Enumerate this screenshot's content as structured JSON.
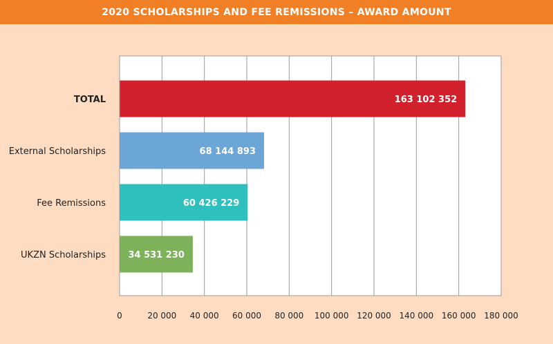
{
  "page": {
    "title": "2020 SCHOLARSHIPS AND FEE REMISSIONS – AWARD AMOUNT"
  },
  "colors": {
    "header_bg": "#F07F25",
    "page_bg": "#FDDCC1",
    "plot_bg": "#FFFFFF",
    "grid": "#9A9A9A"
  },
  "chart_data": {
    "type": "bar",
    "orientation": "horizontal",
    "title": "2020 SCHOLARSHIPS AND FEE REMISSIONS – AWARD AMOUNT",
    "categories": [
      "TOTAL",
      "External Scholarships",
      "Fee Remissions",
      "UKZN Scholarships"
    ],
    "values": [
      163102352,
      68144893,
      60426229,
      34531230
    ],
    "value_labels": [
      "163 102 352",
      "68 144 893",
      "60 426 229",
      "34 531 230"
    ],
    "bar_colors": [
      "#D2202C",
      "#6CA6D6",
      "#2EC0BE",
      "#7DB25B"
    ],
    "bold_categories": [
      "TOTAL"
    ],
    "xlim": [
      0,
      180000
    ],
    "xticks": [
      0,
      20000,
      40000,
      60000,
      80000,
      100000,
      120000,
      140000,
      160000,
      180000
    ],
    "xtick_labels": [
      "0",
      "20 000",
      "40 000",
      "60 000",
      "80 000",
      "100 000",
      "120 000",
      "140 000",
      "160 000",
      "180 000"
    ],
    "grid": "vertical",
    "legend": "none",
    "xlabel": "",
    "ylabel": ""
  }
}
